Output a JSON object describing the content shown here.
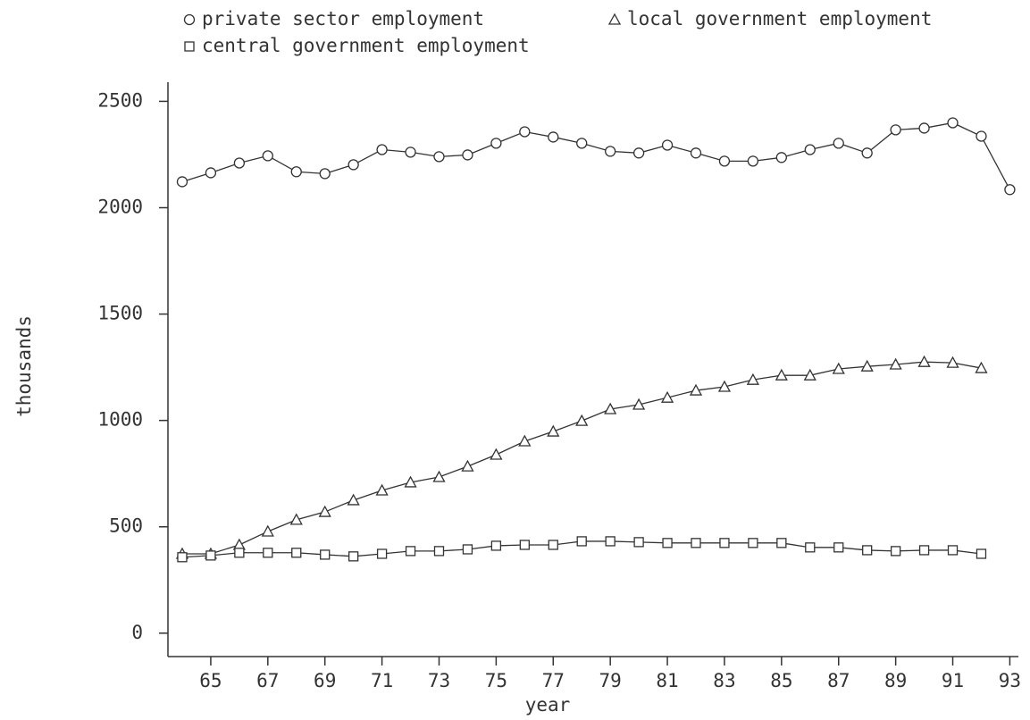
{
  "chart_data": {
    "type": "line",
    "x_label": "year",
    "y_label": "thousands",
    "x": [
      64,
      65,
      66,
      67,
      68,
      69,
      70,
      71,
      72,
      73,
      74,
      75,
      76,
      77,
      78,
      79,
      80,
      81,
      82,
      83,
      84,
      85,
      86,
      87,
      88,
      89,
      90,
      91,
      92,
      93
    ],
    "xlim": [
      63.5,
      93.3
    ],
    "xticks": [
      65,
      67,
      69,
      71,
      73,
      75,
      77,
      79,
      81,
      83,
      85,
      87,
      89,
      91,
      93
    ],
    "ylim": [
      -110,
      2590
    ],
    "yticks": [
      0,
      500,
      1000,
      1500,
      2000,
      2500
    ],
    "series": [
      {
        "name": "private sector employment",
        "color": "#333333",
        "marker": "circle",
        "values": [
          2122,
          2164,
          2210,
          2244,
          2169,
          2160,
          2202,
          2273,
          2261,
          2240,
          2248,
          2303,
          2357,
          2332,
          2303,
          2265,
          2257,
          2294,
          2257,
          2219,
          2219,
          2236,
          2273,
          2303,
          2257,
          2366,
          2374,
          2399,
          2336,
          2085
        ]
      },
      {
        "name": "local government employment",
        "color": "#333333",
        "marker": "triangle",
        "values": [
          373,
          373,
          415,
          478,
          533,
          570,
          625,
          671,
          709,
          734,
          784,
          839,
          902,
          948,
          998,
          1053,
          1074,
          1107,
          1141,
          1158,
          1191,
          1212,
          1212,
          1242,
          1254,
          1263,
          1275,
          1271,
          1246,
          null
        ]
      },
      {
        "name": "central government employment",
        "color": "#333333",
        "marker": "square",
        "values": [
          357,
          365,
          378,
          378,
          378,
          369,
          361,
          373,
          386,
          386,
          394,
          411,
          415,
          415,
          432,
          432,
          428,
          424,
          424,
          424,
          424,
          424,
          403,
          403,
          390,
          386,
          390,
          390,
          373,
          null
        ]
      }
    ]
  }
}
